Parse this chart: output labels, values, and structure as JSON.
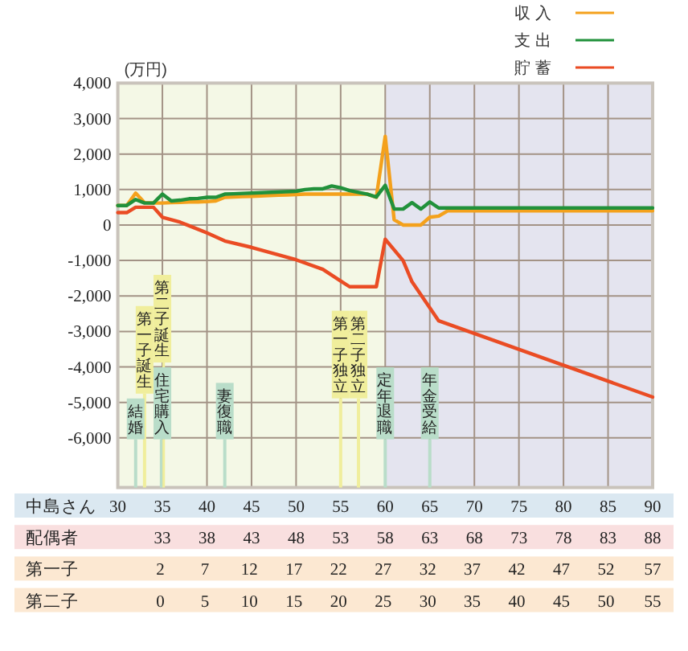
{
  "chart_data": {
    "type": "line",
    "ylabel": "(万円)",
    "xlabel": "中島さん",
    "xlim": [
      30,
      90
    ],
    "xticks": [
      30,
      35,
      40,
      45,
      50,
      55,
      60,
      65,
      70,
      75,
      80,
      85,
      90
    ],
    "x2label": "配偶者",
    "x2lim": [
      28,
      88
    ],
    "x2ticks": [
      33,
      38,
      43,
      48,
      53,
      58,
      63,
      68,
      73,
      78,
      83,
      88
    ],
    "annotations": [
      "第一子",
      "2 7 12 17 22 27 32 37 42 47 52 57",
      "第二子",
      "0 5 10 15 20 25 30 35 40 45 50 55"
    ],
    "ylim": [
      -7400,
      4000
    ],
    "yticks": [
      {
        "value": -6000,
        "label": "-6,000"
      },
      {
        "value": -5000,
        "label": "-5,000"
      },
      {
        "value": -4000,
        "label": "-4,000"
      },
      {
        "value": -3000,
        "label": "-3,000"
      },
      {
        "value": -2000,
        "label": "-2,000"
      },
      {
        "value": -1000,
        "label": "-1,000"
      },
      0,
      {
        "value": 1000,
        "label": "1,000"
      },
      {
        "value": 2000,
        "label": "2,000"
      },
      {
        "value": 3000,
        "label": "3,000"
      },
      {
        "value": 4000,
        "label": "4,000"
      }
    ],
    "grid": true,
    "legend": "top right",
    "bands": [
      {
        "axis": "x",
        "from": 30,
        "to": 60,
        "color": "#f4f8e6"
      },
      {
        "axis": "x",
        "from": 60,
        "to": 90,
        "color": "#e4e4ef"
      }
    ],
    "series": [
      {
        "name": "収入",
        "color": "#f4a11c",
        "x": [
          30,
          31,
          32,
          33,
          34,
          35,
          36,
          37,
          38,
          39,
          40,
          41,
          42,
          43,
          44,
          45,
          46,
          47,
          48,
          49,
          50,
          51,
          52,
          58,
          59,
          60,
          61,
          62,
          63,
          64,
          65,
          66,
          67,
          90
        ],
        "values": [
          550,
          550,
          900,
          630,
          620,
          620,
          630,
          640,
          650,
          650,
          660,
          680,
          780,
          790,
          800,
          810,
          820,
          830,
          840,
          850,
          860,
          870,
          870,
          870,
          780,
          2500,
          150,
          0,
          0,
          0,
          220,
          250,
          400,
          400
        ]
      },
      {
        "name": "支出",
        "color": "#21913b",
        "x": [
          30,
          31,
          32,
          33,
          34,
          35,
          36,
          37,
          38,
          39,
          40,
          41,
          42,
          43,
          45,
          50,
          51,
          52,
          53,
          54,
          55,
          56,
          57,
          58,
          59,
          60,
          61,
          62,
          63,
          64,
          65,
          66,
          90
        ],
        "values": [
          550,
          550,
          720,
          620,
          620,
          870,
          680,
          700,
          740,
          750,
          780,
          780,
          870,
          880,
          900,
          950,
          1000,
          1020,
          1020,
          1100,
          1050,
          970,
          920,
          870,
          790,
          1120,
          450,
          450,
          630,
          450,
          650,
          480,
          480
        ]
      },
      {
        "name": "貯蓄",
        "color": "#ea4c24",
        "x": [
          30,
          31,
          32,
          34,
          35,
          36,
          37,
          38,
          40,
          42,
          45,
          50,
          53,
          55,
          56,
          59,
          60,
          62,
          63,
          66,
          90
        ],
        "values": [
          350,
          350,
          500,
          500,
          220,
          150,
          80,
          -20,
          -220,
          -450,
          -630,
          -980,
          -1250,
          -1580,
          -1740,
          -1740,
          -400,
          -1000,
          -1600,
          -2700,
          -4850
        ]
      }
    ],
    "ref_lines": [
      {
        "axis": "x",
        "value": 32,
        "label": "結婚",
        "color": "#b9ddc9"
      },
      {
        "axis": "x",
        "value": 33,
        "label": "第一子誕生",
        "color": "#f0ee9c"
      },
      {
        "axis": "x",
        "value": 35,
        "label": "住宅購入",
        "color": "#b9ddc9"
      },
      {
        "axis": "x",
        "value": 35,
        "label": "第二子誕生",
        "color": "#f0ee9c"
      },
      {
        "axis": "x",
        "value": 42,
        "label": "妻復職",
        "color": "#b9ddc9"
      },
      {
        "axis": "x",
        "value": 55,
        "label": "第一子独立",
        "color": "#f0ee9c"
      },
      {
        "axis": "x",
        "value": 57,
        "label": "第二子独立",
        "color": "#f0ee9c"
      },
      {
        "axis": "x",
        "value": 60,
        "label": "定年退職",
        "color": "#b9ddc9"
      },
      {
        "axis": "x",
        "value": 65,
        "label": "年金受給",
        "color": "#b9ddc9"
      }
    ]
  }
}
